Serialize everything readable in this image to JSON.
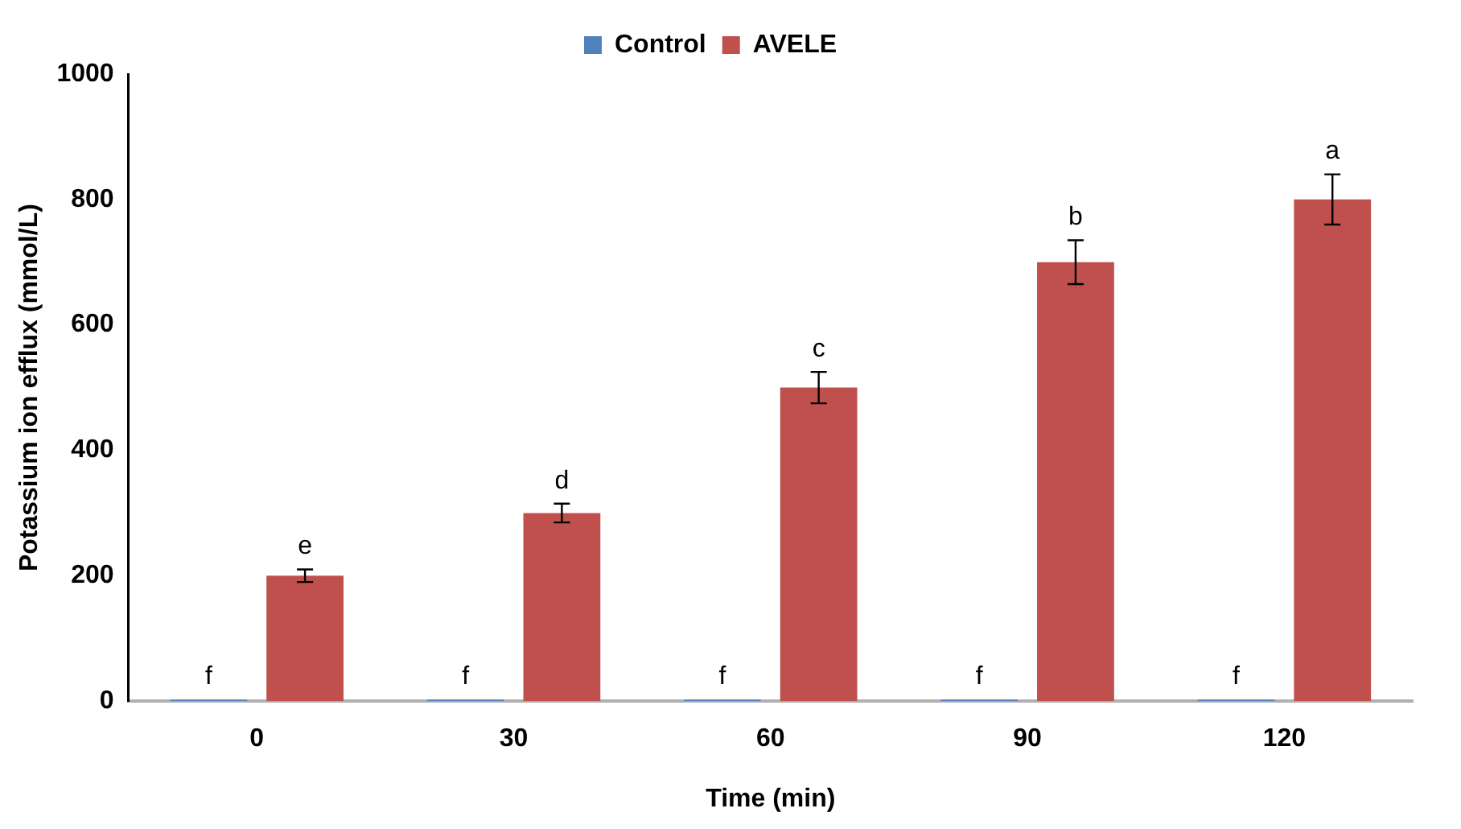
{
  "chart_data": {
    "type": "bar",
    "xlabel": "Time (min)",
    "ylabel": "Potassium ion efflux (mmol/L)",
    "categories": [
      "0",
      "30",
      "60",
      "90",
      "120"
    ],
    "series": [
      {
        "name": "Control",
        "color": "#4f81bd",
        "values": [
          0,
          0,
          0,
          0,
          0
        ],
        "value_labels": [
          "f",
          "f",
          "f",
          "f",
          "f"
        ]
      },
      {
        "name": "AVELE",
        "color": "#c0504d",
        "values": [
          200,
          300,
          500,
          700,
          800
        ],
        "errors": [
          10,
          15,
          25,
          35,
          40
        ],
        "value_labels": [
          "e",
          "d",
          "c",
          "b",
          "a"
        ]
      }
    ],
    "ylim": [
      0,
      1000
    ],
    "yticks": [
      0,
      200,
      400,
      600,
      800,
      1000
    ],
    "grid": false,
    "legend": "top"
  }
}
